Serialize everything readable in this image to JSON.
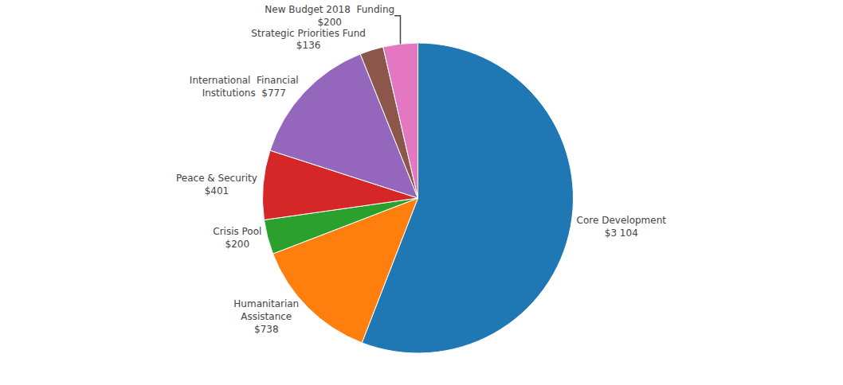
{
  "chart_data": {
    "type": "pie",
    "categories": [
      "Core Development\n$3 104",
      "Humanitarian\nAssistance\n$738",
      "Crisis Pool\n$200",
      "Peace & Security\n$401",
      "International  Financial\nInstitutions  $777",
      "Strategic Priorities Fund\n$136",
      "New Budget 2018  Funding\n$200"
    ],
    "values": [
      3104,
      738,
      200,
      401,
      777,
      136,
      200
    ]
  }
}
